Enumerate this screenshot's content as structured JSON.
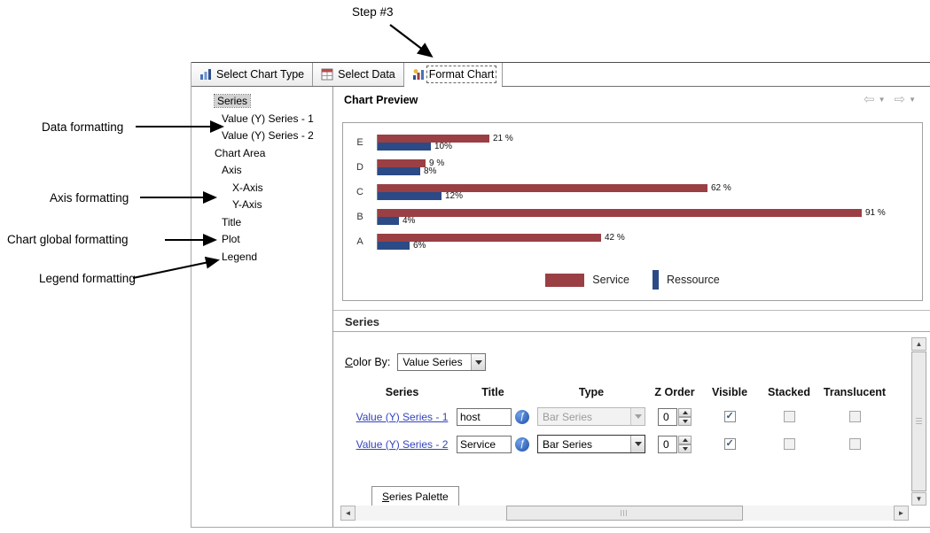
{
  "annotations": {
    "step": "Step #3",
    "data_formatting": "Data formatting",
    "axis_formatting": "Axis formatting",
    "chart_global_formatting": "Chart global formatting",
    "legend_formatting": "Legend formatting"
  },
  "tabs": [
    {
      "label": "Select Chart Type"
    },
    {
      "label": "Select Data"
    },
    {
      "label": "Format Chart",
      "active": true
    }
  ],
  "tree": {
    "items": [
      {
        "label": "Series",
        "selected": true
      },
      {
        "label": "Value (Y) Series - 1"
      },
      {
        "label": "Value (Y) Series - 2"
      },
      {
        "label": "Chart Area"
      },
      {
        "label": "Axis"
      },
      {
        "label": "X-Axis"
      },
      {
        "label": "Y-Axis"
      },
      {
        "label": "Title"
      },
      {
        "label": "Plot"
      },
      {
        "label": "Legend"
      }
    ]
  },
  "preview": {
    "title": "Chart Preview"
  },
  "chart_data": {
    "type": "bar",
    "orientation": "horizontal",
    "categories": [
      "E",
      "D",
      "C",
      "B",
      "A"
    ],
    "series": [
      {
        "name": "Service",
        "color": "#9a3f44",
        "values": [
          21,
          9,
          62,
          91,
          42
        ],
        "labels": [
          "21 %",
          "9 %",
          "62 %",
          "91 %",
          "42 %"
        ]
      },
      {
        "name": "Ressource",
        "color": "#2b4a86",
        "values": [
          10,
          8,
          12,
          4,
          6
        ],
        "labels": [
          "10%",
          "8%",
          "12%",
          "4%",
          "6%"
        ]
      }
    ],
    "xlim": [
      0,
      100
    ],
    "value_unit": "%",
    "legend_position": "bottom",
    "grid": false
  },
  "series_panel": {
    "title": "Series",
    "color_by_label": "Color By:",
    "color_by_value": "Value Series",
    "columns": [
      "Series",
      "Title",
      "Type",
      "Z Order",
      "Visible",
      "Stacked",
      "Translucent"
    ],
    "rows": [
      {
        "series_link": "Value (Y) Series - 1",
        "title": "host",
        "type": "Bar Series",
        "type_enabled": false,
        "z_order": "0",
        "visible": true,
        "stacked": false,
        "translucent": false
      },
      {
        "series_link": "Value (Y) Series - 2",
        "title": "Service",
        "type": "Bar Series",
        "type_enabled": true,
        "z_order": "0",
        "visible": true,
        "stacked": false,
        "translucent": false
      }
    ],
    "palette_tab": "Series Palette"
  },
  "icons": {
    "nav_back": "⇦",
    "nav_forward": "⇨",
    "dropdown": "▼",
    "expression": "ƒ",
    "scroll_left": "◄",
    "scroll_right": "►",
    "scroll_up": "▲",
    "scroll_down": "▼"
  }
}
